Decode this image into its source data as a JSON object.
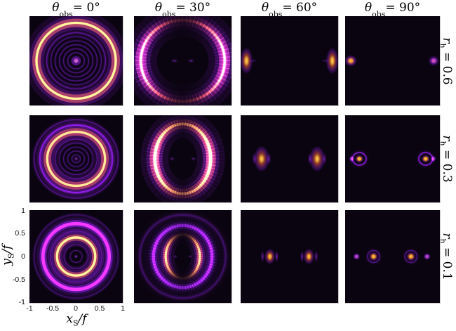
{
  "chart_data": {
    "type": "heatmap",
    "layout": "3x4 grid of intensity maps (black-hole lensed images)",
    "colormap": "inferno (black - purple - magenta - orange - yellow)",
    "col_titles": [
      {
        "sym": "θ",
        "sub": "obs",
        "rest": " = 0°",
        "theta_obs_deg": 0
      },
      {
        "sym": "θ",
        "sub": "obs",
        "rest": " = 30°",
        "theta_obs_deg": 30
      },
      {
        "sym": "θ",
        "sub": "obs",
        "rest": " = 60°",
        "theta_obs_deg": 60
      },
      {
        "sym": "θ",
        "sub": "obs",
        "rest": " = 90°",
        "theta_obs_deg": 90
      }
    ],
    "row_titles": [
      {
        "sym": "r",
        "sub": "h",
        "rest": " = 0.6",
        "r_h": 0.6
      },
      {
        "sym": "r",
        "sub": "h",
        "rest": " = 0.3",
        "r_h": 0.3
      },
      {
        "sym": "r",
        "sub": "h",
        "rest": " = 0.1",
        "r_h": 0.1
      }
    ],
    "xaxis": {
      "sym": "x",
      "sub": "S",
      "rest": "/f",
      "ticks": [
        "-1",
        "-0.5",
        "0",
        "0.5",
        "1"
      ],
      "range": [
        -1,
        1
      ]
    },
    "yaxis": {
      "sym": "y",
      "sub": "S",
      "rest": "/f",
      "ticks": [
        "1",
        "0.5",
        "0",
        "-0.5",
        "-1"
      ],
      "range": [
        -1,
        1
      ]
    },
    "panels": [
      {
        "row": 0,
        "col": 0,
        "theta_obs_deg": 0,
        "r_h": 0.6,
        "desc": "Bright circular ring radius ~0.85 with faint concentric inner rings and bright central dot",
        "features": [
          {
            "t": "rings",
            "radii": [
              0.09,
              0.18,
              0.27,
              0.36,
              0.45,
              0.54,
              0.63
            ],
            "w": 0.022,
            "c": "#5a1398",
            "a": 0.55
          },
          {
            "t": "ring",
            "rx": 0.85,
            "w": 0.05,
            "g": 0.24,
            "core": "#ffc035",
            "mid": "#f3702a",
            "glow": "#8a1ad8",
            "a": 1
          },
          {
            "t": "spot",
            "x": 0,
            "y": 0,
            "rx": 0.1,
            "coreFrac": 0.35,
            "core": "#e06ae0",
            "mid": "#a428ec",
            "glow": "#6a14b0",
            "a": 0.95
          }
        ]
      },
      {
        "row": 0,
        "col": 1,
        "theta_obs_deg": 30,
        "r_h": 0.6,
        "desc": "Large ellipse ~0.86x0.91 bright on left/right arcs, faint purple at top/bottom",
        "features": [
          {
            "t": "ring",
            "rx": 0.86,
            "ry": 0.91,
            "w": 0.06,
            "g": 0.3,
            "core": "#ef5a2e",
            "mid": "#c03390",
            "glow": "#8a1ad8",
            "a": 1,
            "ang": {
              "base": 0.13,
              "pow": 1.7
            }
          },
          {
            "t": "ring",
            "rx": 0.86,
            "ry": 0.91,
            "w": 0.035,
            "g": 0.1,
            "core": "#ffaf2e",
            "mid": "#ef5a2e",
            "glow": "#c03390",
            "a": 0.9,
            "ang": {
              "base": 0,
              "pow": 3.5
            }
          },
          {
            "t": "spot",
            "x": -0.17,
            "y": 0,
            "rx": 0.08,
            "ry": 0.05,
            "coreFrac": 0.3,
            "core": "#7a2ab0",
            "mid": "#5c1890",
            "glow": "#3a0c60",
            "a": 0.5
          },
          {
            "t": "spot",
            "x": 0.17,
            "y": 0,
            "rx": 0.08,
            "ry": 0.05,
            "coreFrac": 0.3,
            "core": "#7a2ab0",
            "mid": "#5c1890",
            "glow": "#3a0c60",
            "a": 0.5
          }
        ]
      },
      {
        "row": 0,
        "col": 2,
        "theta_obs_deg": 60,
        "r_h": 0.6,
        "desc": "Two vertically elongated bright spots at x = ±0.88",
        "features": [
          {
            "t": "spot",
            "x": -0.88,
            "y": 0,
            "rx": 0.13,
            "ry": 0.3,
            "coreFrac": 0.22,
            "core": "#ffc035",
            "mid": "#e85c2e",
            "glow": "#8a1ad8",
            "a": 1
          },
          {
            "t": "spot",
            "x": 0.88,
            "y": 0,
            "rx": 0.13,
            "ry": 0.3,
            "coreFrac": 0.22,
            "core": "#ffc035",
            "mid": "#e85c2e",
            "glow": "#8a1ad8",
            "a": 1
          },
          {
            "t": "spot",
            "x": -0.74,
            "y": 0,
            "rx": 0.09,
            "ry": 0.035,
            "coreFrac": 0.2,
            "core": "#8a1ad8",
            "mid": "#6a14b0",
            "glow": "#3a0c60",
            "a": 0.45
          },
          {
            "t": "spot",
            "x": 0.74,
            "y": 0,
            "rx": 0.09,
            "ry": 0.035,
            "coreFrac": 0.2,
            "core": "#8a1ad8",
            "mid": "#6a14b0",
            "glow": "#3a0c60",
            "a": 0.45
          }
        ]
      },
      {
        "row": 0,
        "col": 3,
        "theta_obs_deg": 90,
        "r_h": 0.6,
        "desc": "Two compact round spots at x = ±0.88; left orange-cored, right magenta",
        "features": [
          {
            "t": "spot",
            "x": -0.88,
            "y": 0,
            "rx": 0.13,
            "coreFrac": 0.3,
            "core": "#ffaf2e",
            "mid": "#d84a9a",
            "glow": "#7a16c9",
            "a": 1
          },
          {
            "t": "spot",
            "x": 0.87,
            "y": 0,
            "rx": 0.12,
            "coreFrac": 0.3,
            "core": "#e050d0",
            "mid": "#9a24e0",
            "glow": "#5c12a0",
            "a": 0.95
          }
        ]
      },
      {
        "row": 1,
        "col": 0,
        "theta_obs_deg": 0,
        "r_h": 0.3,
        "desc": "Bright ring radius ~0.62 with two faint outer purple rings and faint inner rings",
        "features": [
          {
            "t": "rings",
            "radii": [
              0.09,
              0.18,
              0.27,
              0.36,
              0.45
            ],
            "w": 0.022,
            "c": "#5a1398",
            "a": 0.5
          },
          {
            "t": "ring",
            "rx": 0.62,
            "w": 0.05,
            "g": 0.22,
            "core": "#ffb92f",
            "mid": "#ee6328",
            "glow": "#8a1ad8",
            "a": 1
          },
          {
            "t": "rings",
            "radii": [
              0.78
            ],
            "w": 0.04,
            "c": "#7a16c9",
            "a": 0.65
          },
          {
            "t": "rings",
            "radii": [
              0.9
            ],
            "w": 0.035,
            "c": "#6a14b0",
            "a": 0.45
          },
          {
            "t": "spot",
            "x": 0,
            "y": 0,
            "rx": 0.06,
            "coreFrac": 0.3,
            "core": "#b040d0",
            "mid": "#7a16c9",
            "glow": "#4a0e86",
            "a": 0.6
          }
        ]
      },
      {
        "row": 1,
        "col": 1,
        "theta_obs_deg": 30,
        "r_h": 0.3,
        "desc": "Pointed oval ~0.58x0.80, bright yellow arcs at sides, purple arcs top/bottom",
        "features": [
          {
            "t": "ring",
            "rx": 0.58,
            "ry": 0.8,
            "w": 0.055,
            "g": 0.26,
            "core": "#ffc035",
            "mid": "#e0512f",
            "glow": "#9320dd",
            "a": 1,
            "ang": {
              "base": 0.3,
              "pow": 1.2
            }
          },
          {
            "t": "ring",
            "rx": 0.56,
            "ry": 0.78,
            "w": 0.04,
            "g": 0.12,
            "core": "#ffd23d",
            "mid": "#f07028",
            "glow": "#c03390",
            "a": 0.95,
            "ang": {
              "base": 0,
              "pow": 3
            }
          },
          {
            "t": "spot",
            "x": -0.22,
            "y": 0,
            "rx": 0.06,
            "ry": 0.05,
            "coreFrac": 0.3,
            "core": "#8a2ac0",
            "mid": "#6a14b0",
            "glow": "#3a0c60",
            "a": 0.45
          },
          {
            "t": "spot",
            "x": 0.22,
            "y": 0,
            "rx": 0.06,
            "ry": 0.05,
            "coreFrac": 0.3,
            "core": "#8a2ac0",
            "mid": "#6a14b0",
            "glow": "#3a0c60",
            "a": 0.45
          }
        ]
      },
      {
        "row": 1,
        "col": 2,
        "theta_obs_deg": 60,
        "r_h": 0.3,
        "desc": "Two elongated bright blobs at x = ±0.57 with vertical purple side lobes",
        "features": [
          {
            "t": "spot",
            "x": -0.57,
            "y": 0,
            "rx": 0.16,
            "ry": 0.3,
            "coreFrac": 0.18,
            "core": "#ffc035",
            "mid": "#e85c2e",
            "glow": "#8a1ad8",
            "a": 1
          },
          {
            "t": "spot",
            "x": 0.57,
            "y": 0,
            "rx": 0.16,
            "ry": 0.3,
            "coreFrac": 0.18,
            "core": "#ffc035",
            "mid": "#e85c2e",
            "glow": "#8a1ad8",
            "a": 1
          },
          {
            "t": "spot",
            "x": -0.42,
            "y": 0,
            "rx": 0.045,
            "ry": 0.15,
            "coreFrac": 0.3,
            "core": "#9a24e0",
            "mid": "#7a16c9",
            "glow": "#4a0e86",
            "a": 0.5
          },
          {
            "t": "spot",
            "x": 0.42,
            "y": 0,
            "rx": 0.045,
            "ry": 0.15,
            "coreFrac": 0.3,
            "core": "#9a24e0",
            "mid": "#7a16c9",
            "glow": "#4a0e86",
            "a": 0.5
          },
          {
            "t": "spot",
            "x": -0.72,
            "y": 0,
            "rx": 0.045,
            "ry": 0.15,
            "coreFrac": 0.3,
            "core": "#9a24e0",
            "mid": "#7a16c9",
            "glow": "#4a0e86",
            "a": 0.45
          },
          {
            "t": "spot",
            "x": 0.72,
            "y": 0,
            "rx": 0.045,
            "ry": 0.15,
            "coreFrac": 0.3,
            "core": "#9a24e0",
            "mid": "#7a16c9",
            "glow": "#4a0e86",
            "a": 0.45
          }
        ]
      },
      {
        "row": 1,
        "col": 3,
        "theta_obs_deg": 90,
        "r_h": 0.3,
        "desc": "Two orange-cored spots at x = ±0.70 with halo rings and outer purple companions at x = ±0.86",
        "features": [
          {
            "t": "spot",
            "x": -0.7,
            "y": 0,
            "rx": 0.09,
            "coreFrac": 0.4,
            "core": "#ffb92f",
            "mid": "#e0512f",
            "glow": "#8a1ad8",
            "a": 1
          },
          {
            "t": "spot",
            "x": 0.7,
            "y": 0,
            "rx": 0.09,
            "coreFrac": 0.4,
            "core": "#ffb92f",
            "mid": "#e0512f",
            "glow": "#8a1ad8",
            "a": 1
          },
          {
            "t": "ring",
            "x": -0.7,
            "rx": 0.145,
            "w": 0.025,
            "g": 0.06,
            "core": "#8a1ad8",
            "mid": "#6a14b0",
            "glow": "#3a0c60",
            "a": 0.55
          },
          {
            "t": "ring",
            "x": 0.7,
            "rx": 0.145,
            "w": 0.025,
            "g": 0.06,
            "core": "#8a1ad8",
            "mid": "#6a14b0",
            "glow": "#3a0c60",
            "a": 0.55
          },
          {
            "t": "spot",
            "x": -0.86,
            "y": 0,
            "rx": 0.06,
            "ry": 0.08,
            "coreFrac": 0.4,
            "core": "#c94ae0",
            "mid": "#8a1ad8",
            "glow": "#4a0e86",
            "a": 0.9
          },
          {
            "t": "spot",
            "x": 0.86,
            "y": 0,
            "rx": 0.06,
            "ry": 0.08,
            "coreFrac": 0.4,
            "core": "#c94ae0",
            "mid": "#8a1ad8",
            "glow": "#4a0e86",
            "a": 0.9
          }
        ]
      },
      {
        "row": 2,
        "col": 0,
        "theta_obs_deg": 0,
        "r_h": 0.1,
        "desc": "Bright orange ring ~0.41 plus thick purple ring ~0.71, faint inner/outer rings",
        "features": [
          {
            "t": "rings",
            "radii": [
              0.13,
              0.26
            ],
            "w": 0.022,
            "c": "#5a1398",
            "a": 0.45
          },
          {
            "t": "ring",
            "rx": 0.41,
            "w": 0.05,
            "g": 0.18,
            "core": "#ffc035",
            "mid": "#f07028",
            "glow": "#8a1ad8",
            "a": 1
          },
          {
            "t": "rings",
            "radii": [
              0.55
            ],
            "w": 0.03,
            "c": "#6a14b0",
            "a": 0.4
          },
          {
            "t": "ring",
            "rx": 0.71,
            "w": 0.07,
            "g": 0.2,
            "core": "#a428ec",
            "mid": "#8a1ad8",
            "glow": "#5c12a0",
            "a": 0.95
          },
          {
            "t": "rings",
            "radii": [
              0.9
            ],
            "w": 0.03,
            "c": "#5a1398",
            "a": 0.3
          },
          {
            "t": "spot",
            "x": 0,
            "y": 0,
            "rx": 0.05,
            "coreFrac": 0.35,
            "core": "#b040d0",
            "mid": "#7a16c9",
            "glow": "#4a0e86",
            "a": 0.6
          }
        ]
      },
      {
        "row": 2,
        "col": 1,
        "theta_obs_deg": 30,
        "r_h": 0.1,
        "desc": "Small orange side arcs ~±0.35 inside irregular purple ring ~0.6, faint outer diffraction arcs",
        "features": [
          {
            "t": "ring",
            "rx": 0.35,
            "ry": 0.47,
            "w": 0.045,
            "g": 0.16,
            "core": "#ffb92f",
            "mid": "#e8562c",
            "glow": "#9320dd",
            "a": 1,
            "ang": {
              "base": 0.06,
              "pow": 2.4
            }
          },
          {
            "t": "ring",
            "rx": 0.6,
            "ry": 0.67,
            "w": 0.06,
            "g": 0.18,
            "core": "#9a24e0",
            "mid": "#7a16c9",
            "glow": "#4a0e86",
            "a": 0.8,
            "ang": {
              "base": 0.55,
              "pow": 1
            }
          },
          {
            "t": "ring",
            "rx": 0.88,
            "ry": 0.9,
            "w": 0.04,
            "g": 0.12,
            "core": "#6a14b0",
            "mid": "#5a1398",
            "glow": "#3a0c60",
            "a": 0.3
          },
          {
            "t": "spot",
            "x": -0.15,
            "y": 0,
            "rx": 0.05,
            "ry": 0.04,
            "coreFrac": 0.3,
            "core": "#8a2ac0",
            "mid": "#6a14b0",
            "glow": "#3a0c60",
            "a": 0.4
          },
          {
            "t": "spot",
            "x": 0.15,
            "y": 0,
            "rx": 0.05,
            "ry": 0.04,
            "coreFrac": 0.3,
            "core": "#8a2ac0",
            "mid": "#6a14b0",
            "glow": "#3a0c60",
            "a": 0.4
          }
        ]
      },
      {
        "row": 2,
        "col": 2,
        "theta_obs_deg": 60,
        "r_h": 0.1,
        "desc": "Orange-cored blobs at x = ±0.40 flanked by vertical purple lobes at ±0.26 and ±0.55",
        "features": [
          {
            "t": "spot",
            "x": -0.4,
            "y": 0,
            "rx": 0.11,
            "ry": 0.17,
            "coreFrac": 0.25,
            "core": "#ffb92f",
            "mid": "#e0512f",
            "glow": "#8a1ad8",
            "a": 1
          },
          {
            "t": "spot",
            "x": 0.4,
            "y": 0,
            "rx": 0.11,
            "ry": 0.17,
            "coreFrac": 0.25,
            "core": "#ffb92f",
            "mid": "#e0512f",
            "glow": "#8a1ad8",
            "a": 1
          },
          {
            "t": "spot",
            "x": -0.26,
            "y": 0,
            "rx": 0.04,
            "ry": 0.13,
            "coreFrac": 0.3,
            "core": "#9a24e0",
            "mid": "#7a16c9",
            "glow": "#4a0e86",
            "a": 0.6
          },
          {
            "t": "spot",
            "x": 0.26,
            "y": 0,
            "rx": 0.04,
            "ry": 0.13,
            "coreFrac": 0.3,
            "core": "#9a24e0",
            "mid": "#7a16c9",
            "glow": "#4a0e86",
            "a": 0.6
          },
          {
            "t": "spot",
            "x": -0.55,
            "y": 0,
            "rx": 0.04,
            "ry": 0.13,
            "coreFrac": 0.3,
            "core": "#9a24e0",
            "mid": "#7a16c9",
            "glow": "#4a0e86",
            "a": 0.55
          },
          {
            "t": "spot",
            "x": 0.55,
            "y": 0,
            "rx": 0.04,
            "ry": 0.13,
            "coreFrac": 0.3,
            "core": "#9a24e0",
            "mid": "#7a16c9",
            "glow": "#4a0e86",
            "a": 0.55
          }
        ]
      },
      {
        "row": 2,
        "col": 3,
        "theta_obs_deg": 90,
        "r_h": 0.1,
        "desc": "Orange spots at x = ±0.40 and separate purple spots at x = ±0.75",
        "features": [
          {
            "t": "spot",
            "x": -0.4,
            "y": 0,
            "rx": 0.1,
            "coreFrac": 0.35,
            "core": "#ffb92f",
            "mid": "#e0512f",
            "glow": "#8a1ad8",
            "a": 1
          },
          {
            "t": "spot",
            "x": 0.39,
            "y": 0,
            "rx": 0.1,
            "coreFrac": 0.35,
            "core": "#ffb92f",
            "mid": "#e0512f",
            "glow": "#8a1ad8",
            "a": 1
          },
          {
            "t": "ring",
            "x": -0.4,
            "rx": 0.13,
            "w": 0.02,
            "g": 0.05,
            "core": "#7a16c9",
            "mid": "#5c12a0",
            "glow": "#3a0c60",
            "a": 0.4
          },
          {
            "t": "ring",
            "x": 0.39,
            "rx": 0.13,
            "w": 0.02,
            "g": 0.05,
            "core": "#7a16c9",
            "mid": "#5c12a0",
            "glow": "#3a0c60",
            "a": 0.4
          },
          {
            "t": "spot",
            "x": -0.76,
            "y": 0,
            "rx": 0.08,
            "coreFrac": 0.4,
            "core": "#c94ae0",
            "mid": "#8a1ad8",
            "glow": "#4a0e86",
            "a": 0.9
          },
          {
            "t": "spot",
            "x": 0.73,
            "y": 0,
            "rx": 0.08,
            "coreFrac": 0.4,
            "core": "#c94ae0",
            "mid": "#8a1ad8",
            "glow": "#4a0e86",
            "a": 0.9
          }
        ]
      }
    ]
  }
}
